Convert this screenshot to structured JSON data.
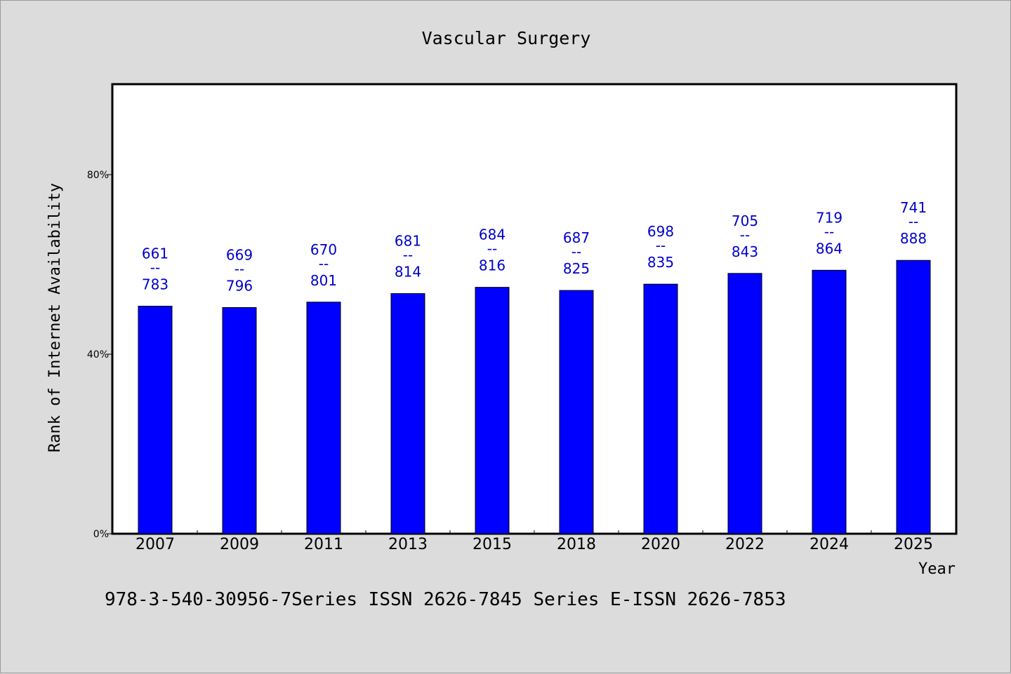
{
  "chart_data": {
    "type": "bar",
    "title": "Vascular Surgery",
    "xlabel": "Year",
    "ylabel": "Rank of Internet Availability",
    "categories": [
      "2007",
      "2009",
      "2011",
      "2013",
      "2015",
      "2018",
      "2020",
      "2022",
      "2024",
      "2025"
    ],
    "values": [
      50.7,
      50.4,
      51.6,
      53.5,
      54.9,
      54.2,
      55.6,
      58.0,
      58.7,
      60.9
    ],
    "labels_top": [
      "661",
      "669",
      "670",
      "681",
      "684",
      "687",
      "698",
      "705",
      "719",
      "741"
    ],
    "label_separator": "--",
    "labels_bottom": [
      "783",
      "796",
      "801",
      "814",
      "816",
      "825",
      "835",
      "843",
      "864",
      "888"
    ],
    "ylim": [
      0,
      100
    ],
    "yticks": [
      0,
      40,
      80
    ],
    "ytick_labels": [
      "0%",
      "40%",
      "80%"
    ],
    "grid": false,
    "bar_color": "#0000ff",
    "label_color": "#0000cc"
  },
  "footer": "978-3-540-30956-7Series ISSN 2626-7845 Series E-ISSN 2626-7853"
}
